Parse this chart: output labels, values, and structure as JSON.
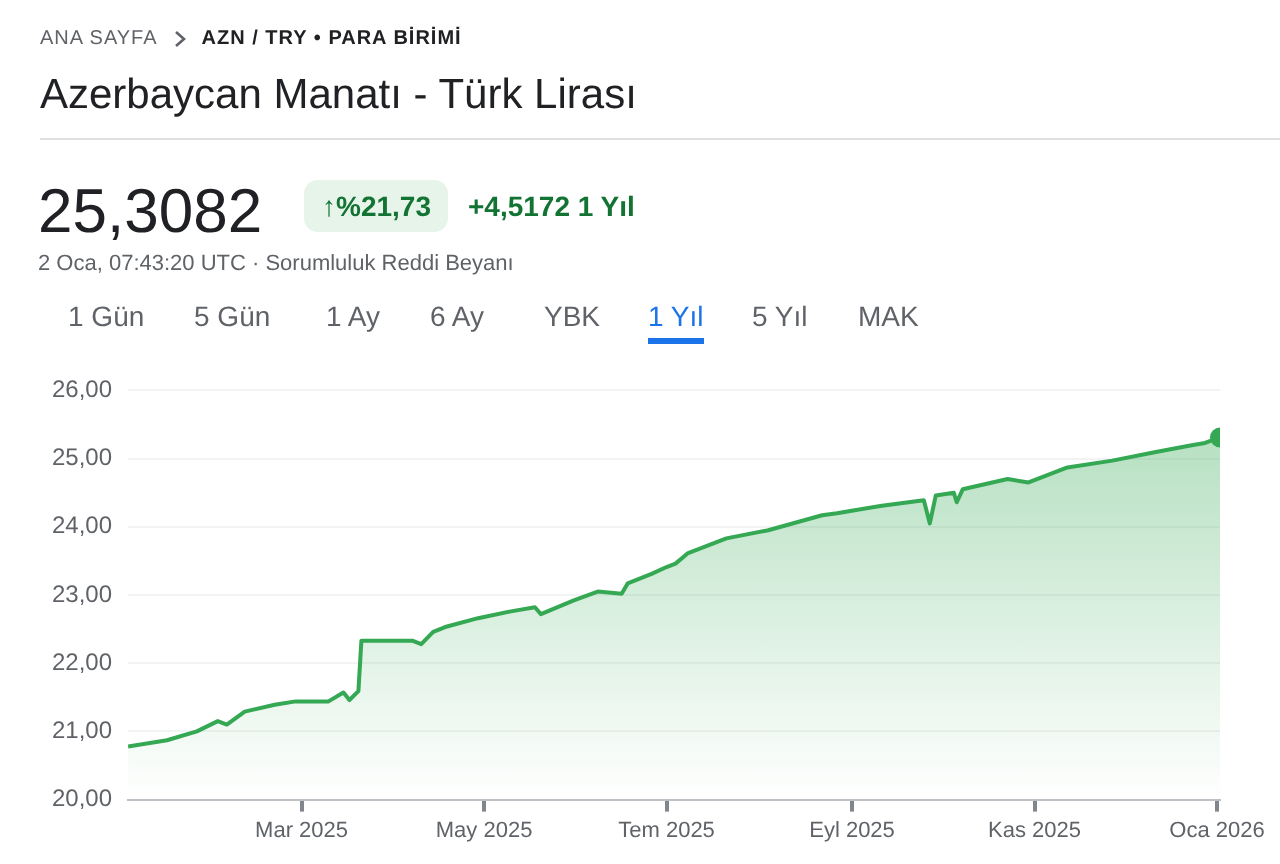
{
  "chart_data": {
    "type": "area",
    "title": "Azerbaycan Manatı - Türk Lirası",
    "subtitle": "AZN / TRY • PARA BİRİMİ",
    "annotations": [
      "ANA SAYFA",
      "25,3082",
      "↑%21,73",
      "+4,5172 1 Yıl",
      "2 Oca, 07:43:20 UTC · Sorumluluk Reddi Beyanı",
      "1 Gün",
      "5 Gün",
      "1 Ay",
      "6 Ay",
      "YBK",
      "1 Yıl",
      "5 Yıl",
      "MAK"
    ],
    "x": [
      "2025-01-02",
      "2025-01-15",
      "2025-01-25",
      "2025-02-01",
      "2025-02-04",
      "2025-02-10",
      "2025-02-20",
      "2025-02-27",
      "2025-03-10",
      "2025-03-15",
      "2025-03-17",
      "2025-03-20",
      "2025-03-21",
      "2025-04-07",
      "2025-04-10",
      "2025-04-14",
      "2025-04-18",
      "2025-04-29",
      "2025-05-10",
      "2025-05-18",
      "2025-05-20",
      "2025-05-31",
      "2025-06-08",
      "2025-06-16",
      "2025-06-18",
      "2025-06-26",
      "2025-07-01",
      "2025-07-04",
      "2025-07-08",
      "2025-07-21",
      "2025-08-04",
      "2025-08-22",
      "2025-08-27",
      "2025-09-11",
      "2025-09-25",
      "2025-09-27",
      "2025-09-29",
      "2025-10-05",
      "2025-10-06",
      "2025-10-08",
      "2025-10-23",
      "2025-10-30",
      "2025-11-12",
      "2025-11-27",
      "2025-12-12",
      "2025-12-24",
      "2025-12-28",
      "2026-01-02"
    ],
    "series": [
      {
        "color": "#34a853",
        "values": [
          20.78,
          20.87,
          21.0,
          21.15,
          21.1,
          21.29,
          21.39,
          21.44,
          21.44,
          21.57,
          21.46,
          21.59,
          22.33,
          22.33,
          22.28,
          22.46,
          22.53,
          22.66,
          22.76,
          22.82,
          22.72,
          22.92,
          23.05,
          23.02,
          23.17,
          23.31,
          23.41,
          23.46,
          23.61,
          23.83,
          23.95,
          24.17,
          24.2,
          24.31,
          24.39,
          24.05,
          24.46,
          24.5,
          24.36,
          24.55,
          24.7,
          24.65,
          24.87,
          24.97,
          25.1,
          25.2,
          25.23,
          25.31
        ]
      }
    ],
    "xlim": [
      "2025-01-02",
      "2026-01-02"
    ],
    "xticks": [
      {
        "value": "2025-03-01",
        "label": "Mar 2025"
      },
      {
        "value": "2025-05-01",
        "label": "May 2025"
      },
      {
        "value": "2025-07-01",
        "label": "Tem 2025"
      },
      {
        "value": "2025-09-01",
        "label": "Eyl 2025"
      },
      {
        "value": "2025-11-01",
        "label": "Kas 2025"
      },
      {
        "value": "2026-01-01",
        "label": "Oca 2026"
      }
    ],
    "ylim": [
      20,
      26
    ],
    "yticks": [
      {
        "value": 20,
        "label": "20,00"
      },
      {
        "value": 21,
        "label": "21,00"
      },
      {
        "value": 22,
        "label": "22,00"
      },
      {
        "value": 23,
        "label": "23,00"
      },
      {
        "value": 24,
        "label": "24,00"
      },
      {
        "value": 25,
        "label": "25,00"
      },
      {
        "value": 26,
        "label": "26,00"
      }
    ],
    "grid": "y",
    "legend": false
  }
}
